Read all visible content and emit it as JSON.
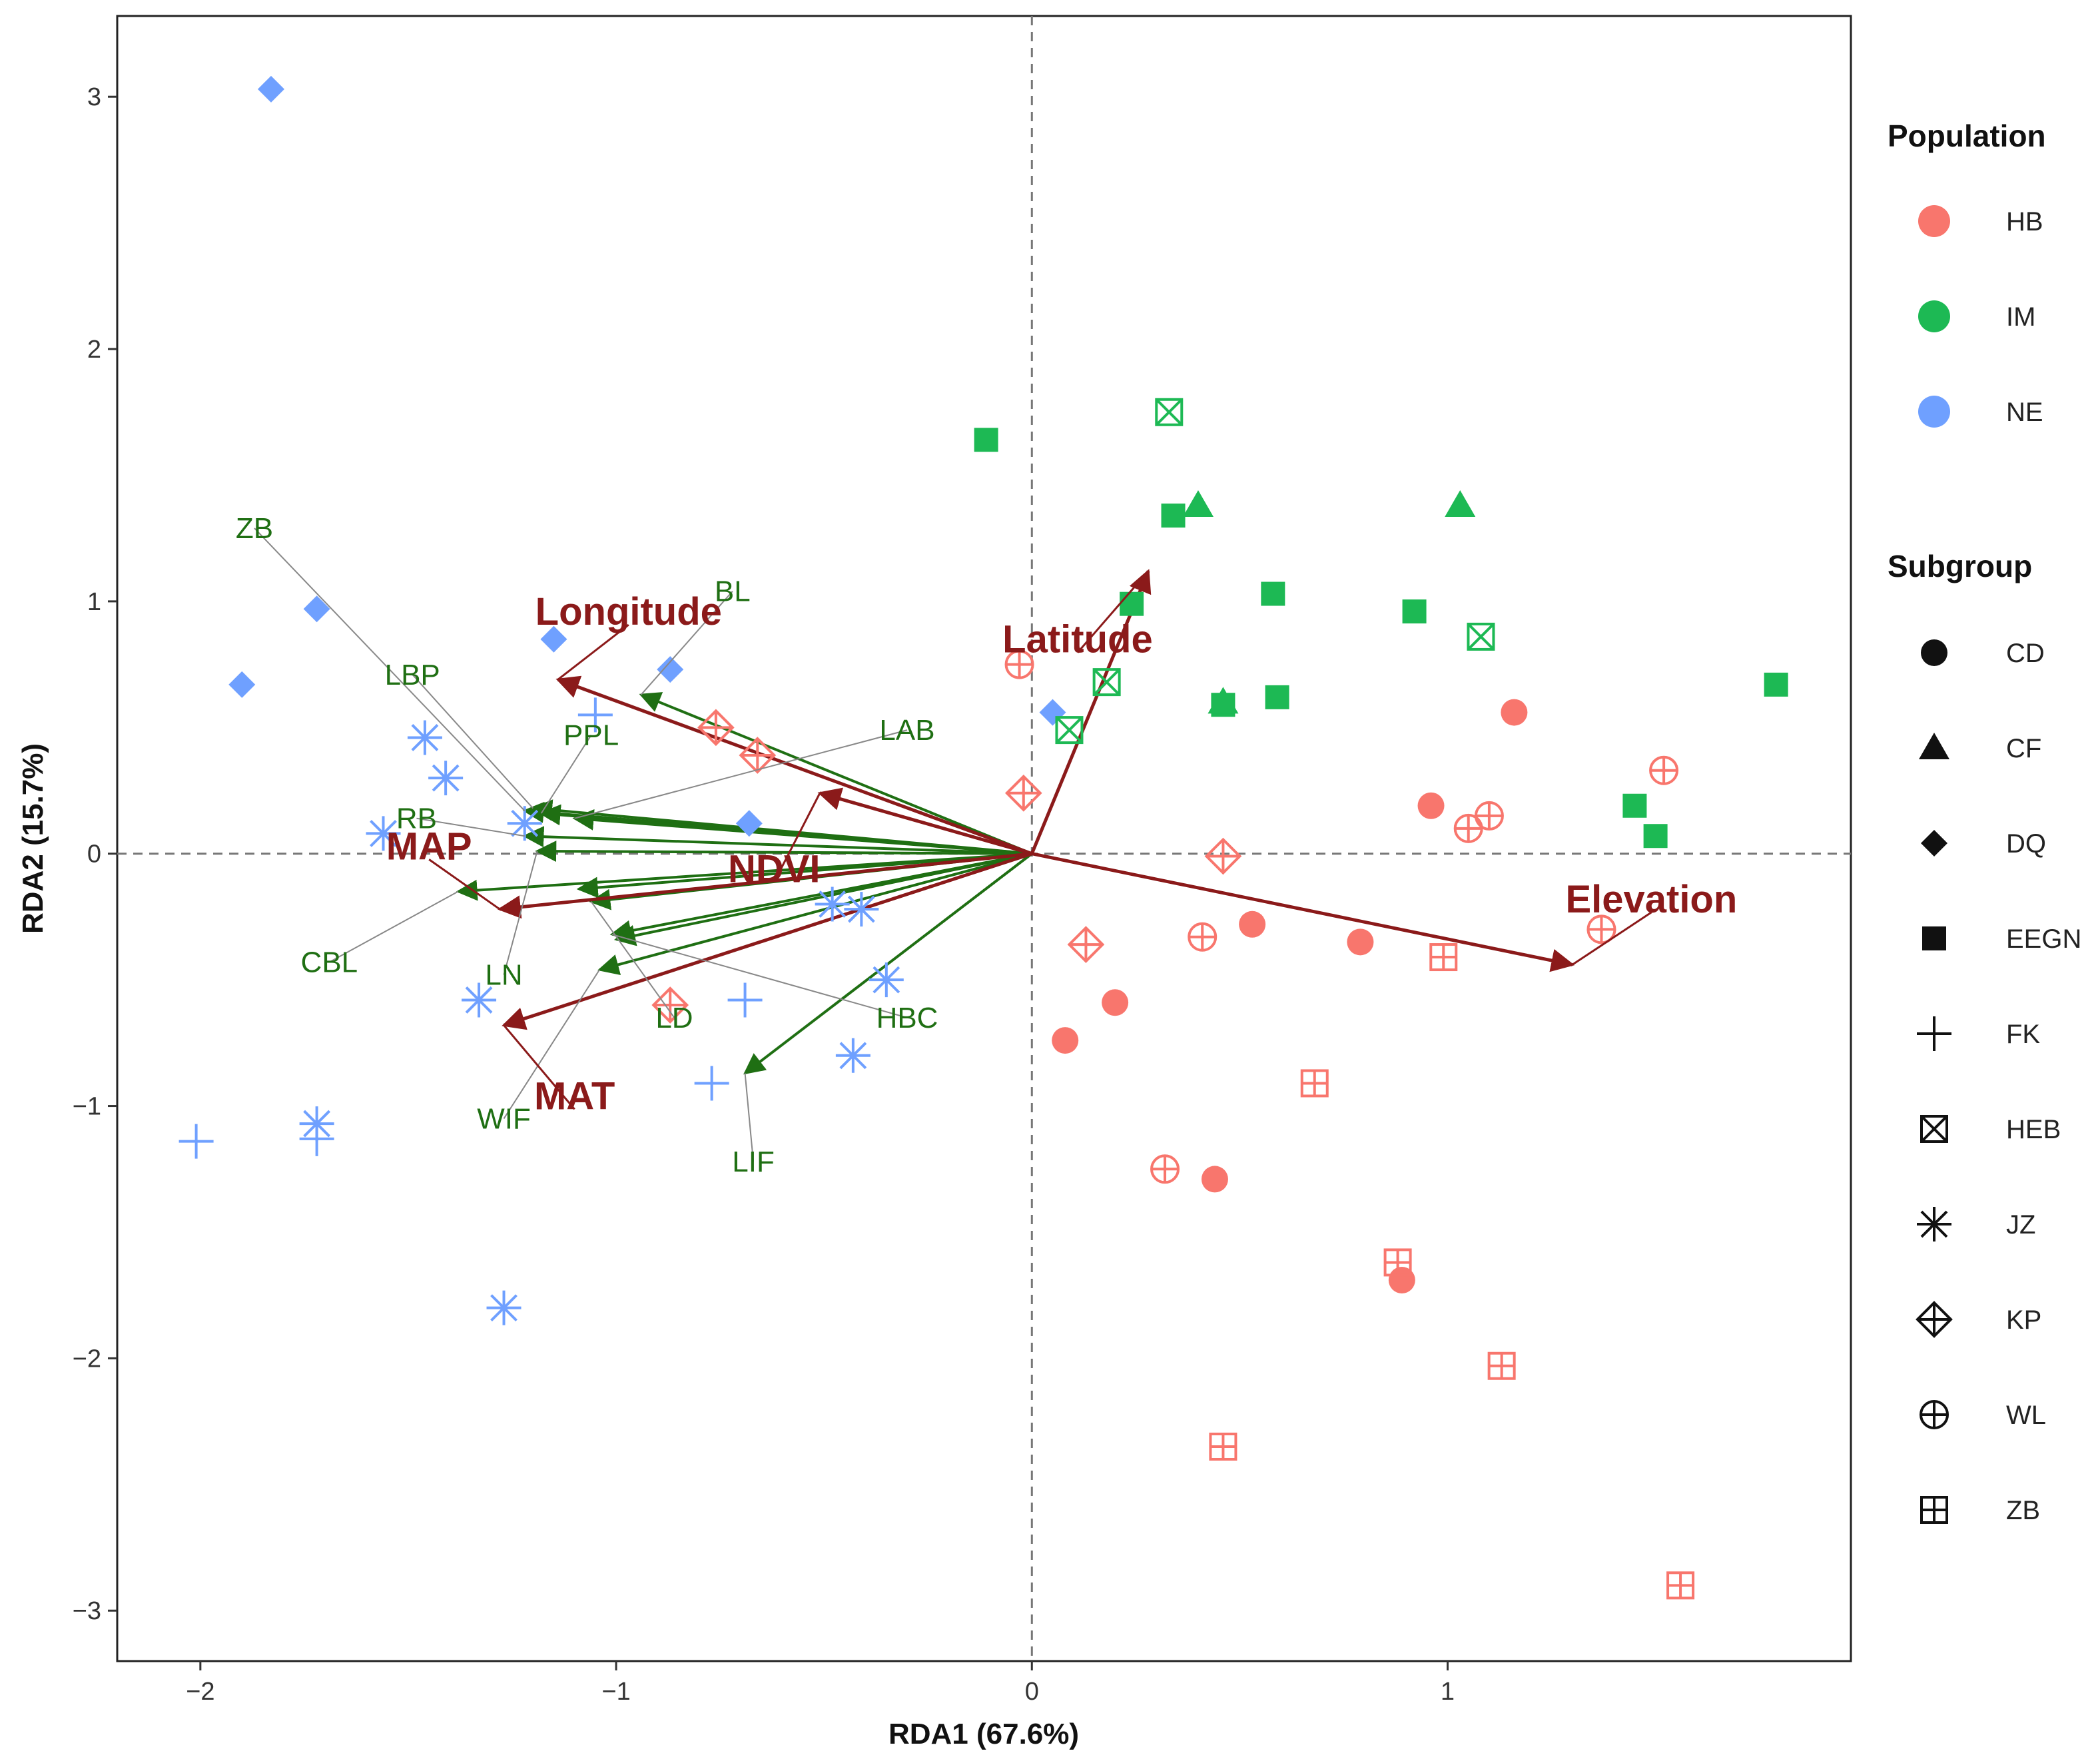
{
  "chart_data": {
    "type": "scatter",
    "subtype": "rda-biplot",
    "xlabel": "RDA1 (67.6%)",
    "ylabel": "RDA2 (15.7%)",
    "xlim": [
      -2.2,
      1.97
    ],
    "ylim": [
      -3.2,
      3.32
    ],
    "x_ticks": [
      -2,
      -1,
      0,
      1
    ],
    "x_tick_labels": [
      "−2",
      "−1",
      "0",
      "1"
    ],
    "y_ticks": [
      -3,
      -2,
      -1,
      0,
      1,
      2,
      3
    ],
    "y_tick_labels": [
      "−3",
      "−2",
      "−1",
      "0",
      "1",
      "2",
      "3"
    ],
    "reference_lines": {
      "x": 0,
      "y": 0,
      "style": "dashed"
    },
    "population_colors": {
      "HB": "#F8766D",
      "IM": "#1DB954",
      "NE": "#6FA0FF"
    },
    "legend": {
      "position": "right",
      "population": {
        "title": "Population",
        "items": [
          "HB",
          "IM",
          "NE"
        ]
      },
      "subgroup": {
        "title": "Subgroup",
        "items": [
          "CD",
          "CF",
          "DQ",
          "EEGN",
          "FK",
          "HEB",
          "JZ",
          "KP",
          "WL",
          "ZB"
        ]
      }
    },
    "points": [
      {
        "x": -1.83,
        "y": 3.03,
        "pop": "NE",
        "sub": "DQ"
      },
      {
        "x": -1.72,
        "y": 0.97,
        "pop": "NE",
        "sub": "DQ"
      },
      {
        "x": -1.9,
        "y": 0.67,
        "pop": "NE",
        "sub": "DQ"
      },
      {
        "x": -1.15,
        "y": 0.85,
        "pop": "NE",
        "sub": "DQ"
      },
      {
        "x": -0.87,
        "y": 0.73,
        "pop": "NE",
        "sub": "DQ"
      },
      {
        "x": -0.68,
        "y": 0.12,
        "pop": "NE",
        "sub": "DQ"
      },
      {
        "x": 0.05,
        "y": 0.56,
        "pop": "NE",
        "sub": "DQ"
      },
      {
        "x": -1.46,
        "y": 0.46,
        "pop": "NE",
        "sub": "JZ"
      },
      {
        "x": -1.41,
        "y": 0.3,
        "pop": "NE",
        "sub": "JZ"
      },
      {
        "x": -1.22,
        "y": 0.12,
        "pop": "NE",
        "sub": "JZ"
      },
      {
        "x": -1.56,
        "y": 0.08,
        "pop": "NE",
        "sub": "JZ"
      },
      {
        "x": -0.48,
        "y": -0.2,
        "pop": "NE",
        "sub": "JZ"
      },
      {
        "x": -0.41,
        "y": -0.22,
        "pop": "NE",
        "sub": "JZ"
      },
      {
        "x": -1.33,
        "y": -0.58,
        "pop": "NE",
        "sub": "JZ"
      },
      {
        "x": -0.35,
        "y": -0.5,
        "pop": "NE",
        "sub": "JZ"
      },
      {
        "x": -0.43,
        "y": -0.8,
        "pop": "NE",
        "sub": "JZ"
      },
      {
        "x": -1.72,
        "y": -1.07,
        "pop": "NE",
        "sub": "JZ"
      },
      {
        "x": -1.27,
        "y": -1.8,
        "pop": "NE",
        "sub": "JZ"
      },
      {
        "x": -1.05,
        "y": 0.55,
        "pop": "NE",
        "sub": "FK"
      },
      {
        "x": -0.69,
        "y": -0.58,
        "pop": "NE",
        "sub": "FK"
      },
      {
        "x": -0.77,
        "y": -0.91,
        "pop": "NE",
        "sub": "FK"
      },
      {
        "x": -2.01,
        "y": -1.14,
        "pop": "NE",
        "sub": "FK"
      },
      {
        "x": -1.72,
        "y": -1.13,
        "pop": "NE",
        "sub": "FK"
      },
      {
        "x": -0.11,
        "y": 1.64,
        "pop": "IM",
        "sub": "EEGN"
      },
      {
        "x": 0.34,
        "y": 1.34,
        "pop": "IM",
        "sub": "EEGN"
      },
      {
        "x": 0.58,
        "y": 1.03,
        "pop": "IM",
        "sub": "EEGN"
      },
      {
        "x": 0.92,
        "y": 0.96,
        "pop": "IM",
        "sub": "EEGN"
      },
      {
        "x": 0.24,
        "y": 0.99,
        "pop": "IM",
        "sub": "EEGN"
      },
      {
        "x": 0.59,
        "y": 0.62,
        "pop": "IM",
        "sub": "EEGN"
      },
      {
        "x": 0.46,
        "y": 0.59,
        "pop": "IM",
        "sub": "EEGN"
      },
      {
        "x": 1.45,
        "y": 0.19,
        "pop": "IM",
        "sub": "EEGN"
      },
      {
        "x": 1.5,
        "y": 0.07,
        "pop": "IM",
        "sub": "EEGN"
      },
      {
        "x": 1.79,
        "y": 0.67,
        "pop": "IM",
        "sub": "EEGN"
      },
      {
        "x": 0.4,
        "y": 1.38,
        "pop": "IM",
        "sub": "CF"
      },
      {
        "x": 1.03,
        "y": 1.38,
        "pop": "IM",
        "sub": "CF"
      },
      {
        "x": 0.46,
        "y": 0.6,
        "pop": "IM",
        "sub": "CF"
      },
      {
        "x": 0.33,
        "y": 1.75,
        "pop": "IM",
        "sub": "HEB"
      },
      {
        "x": 1.08,
        "y": 0.86,
        "pop": "IM",
        "sub": "HEB"
      },
      {
        "x": 0.18,
        "y": 0.68,
        "pop": "IM",
        "sub": "HEB"
      },
      {
        "x": 0.09,
        "y": 0.49,
        "pop": "IM",
        "sub": "HEB"
      },
      {
        "x": 1.16,
        "y": 0.56,
        "pop": "HB",
        "sub": "CD"
      },
      {
        "x": 0.96,
        "y": 0.19,
        "pop": "HB",
        "sub": "CD"
      },
      {
        "x": 0.53,
        "y": -0.28,
        "pop": "HB",
        "sub": "CD"
      },
      {
        "x": 0.79,
        "y": -0.35,
        "pop": "HB",
        "sub": "CD"
      },
      {
        "x": 0.2,
        "y": -0.59,
        "pop": "HB",
        "sub": "CD"
      },
      {
        "x": 0.08,
        "y": -0.74,
        "pop": "HB",
        "sub": "CD"
      },
      {
        "x": 0.44,
        "y": -1.29,
        "pop": "HB",
        "sub": "CD"
      },
      {
        "x": 0.89,
        "y": -1.69,
        "pop": "HB",
        "sub": "CD"
      },
      {
        "x": -0.03,
        "y": 0.75,
        "pop": "HB",
        "sub": "WL"
      },
      {
        "x": 1.52,
        "y": 0.33,
        "pop": "HB",
        "sub": "WL"
      },
      {
        "x": 1.1,
        "y": 0.15,
        "pop": "HB",
        "sub": "WL"
      },
      {
        "x": 1.05,
        "y": 0.1,
        "pop": "HB",
        "sub": "WL"
      },
      {
        "x": 0.41,
        "y": -0.33,
        "pop": "HB",
        "sub": "WL"
      },
      {
        "x": 1.37,
        "y": -0.3,
        "pop": "HB",
        "sub": "WL"
      },
      {
        "x": 0.32,
        "y": -1.25,
        "pop": "HB",
        "sub": "WL"
      },
      {
        "x": -0.76,
        "y": 0.5,
        "pop": "HB",
        "sub": "KP"
      },
      {
        "x": -0.66,
        "y": 0.39,
        "pop": "HB",
        "sub": "KP"
      },
      {
        "x": -0.02,
        "y": 0.24,
        "pop": "HB",
        "sub": "KP"
      },
      {
        "x": 0.46,
        "y": -0.01,
        "pop": "HB",
        "sub": "KP"
      },
      {
        "x": 0.13,
        "y": -0.36,
        "pop": "HB",
        "sub": "KP"
      },
      {
        "x": -0.87,
        "y": -0.6,
        "pop": "HB",
        "sub": "KP"
      },
      {
        "x": 0.99,
        "y": -0.41,
        "pop": "HB",
        "sub": "ZB"
      },
      {
        "x": 0.68,
        "y": -0.91,
        "pop": "HB",
        "sub": "ZB"
      },
      {
        "x": 0.88,
        "y": -1.62,
        "pop": "HB",
        "sub": "ZB"
      },
      {
        "x": 1.13,
        "y": -2.03,
        "pop": "HB",
        "sub": "ZB"
      },
      {
        "x": 0.46,
        "y": -2.35,
        "pop": "HB",
        "sub": "ZB"
      },
      {
        "x": 1.56,
        "y": -2.9,
        "pop": "HB",
        "sub": "ZB"
      }
    ],
    "env_vectors": [
      {
        "name": "Longitude",
        "x": -1.14,
        "y": 0.69,
        "label_x": -0.97,
        "label_y": 0.96,
        "leader": true
      },
      {
        "name": "Latitude",
        "x": 0.28,
        "y": 1.12,
        "label_x": 0.11,
        "label_y": 0.85,
        "leader": true
      },
      {
        "name": "Elevation",
        "x": 1.3,
        "y": -0.44,
        "label_x": 1.49,
        "label_y": -0.18,
        "leader": true
      },
      {
        "name": "MAP",
        "x": -1.28,
        "y": -0.22,
        "label_x": -1.45,
        "label_y": 0.03,
        "leader": true
      },
      {
        "name": "NDVI",
        "x": -0.51,
        "y": 0.24,
        "label_x": -0.62,
        "label_y": -0.06,
        "leader": true
      },
      {
        "name": "MAT",
        "x": -1.27,
        "y": -0.68,
        "label_x": -1.1,
        "label_y": -0.96,
        "leader": true
      }
    ],
    "trait_vectors": [
      {
        "name": "ZB",
        "x": -1.22,
        "y": 0.17,
        "label_x": -1.87,
        "label_y": 1.29
      },
      {
        "name": "BL",
        "x": -0.94,
        "y": 0.63,
        "label_x": -0.72,
        "label_y": 1.04
      },
      {
        "name": "LBP",
        "x": -1.2,
        "y": 0.18,
        "label_x": -1.49,
        "label_y": 0.71
      },
      {
        "name": "PPL",
        "x": -1.18,
        "y": 0.16,
        "label_x": -1.06,
        "label_y": 0.47
      },
      {
        "name": "LAB",
        "x": -1.1,
        "y": 0.14,
        "label_x": -0.3,
        "label_y": 0.49
      },
      {
        "name": "RB",
        "x": -1.22,
        "y": 0.07,
        "label_x": -1.48,
        "label_y": 0.14
      },
      {
        "name": "CBL",
        "x": -1.38,
        "y": -0.15,
        "label_x": -1.69,
        "label_y": -0.43
      },
      {
        "name": "LN",
        "x": -1.19,
        "y": 0.01,
        "label_x": -1.27,
        "label_y": -0.48
      },
      {
        "name": "LD",
        "x": -1.06,
        "y": -0.19,
        "label_x": -0.86,
        "label_y": -0.65
      },
      {
        "name": "HBC",
        "x": -1.01,
        "y": -0.32,
        "label_x": -0.3,
        "label_y": -0.65
      },
      {
        "name": "WIF",
        "x": -1.04,
        "y": -0.46,
        "label_x": -1.27,
        "label_y": -1.05
      },
      {
        "name": "LIF",
        "x": -0.69,
        "y": -0.87,
        "label_x": -0.67,
        "label_y": -1.22
      },
      {
        "name": "",
        "x": -1.0,
        "y": -0.34,
        "label_x": null,
        "label_y": null
      },
      {
        "name": "",
        "x": -1.09,
        "y": -0.14,
        "label_x": null,
        "label_y": null
      }
    ]
  }
}
